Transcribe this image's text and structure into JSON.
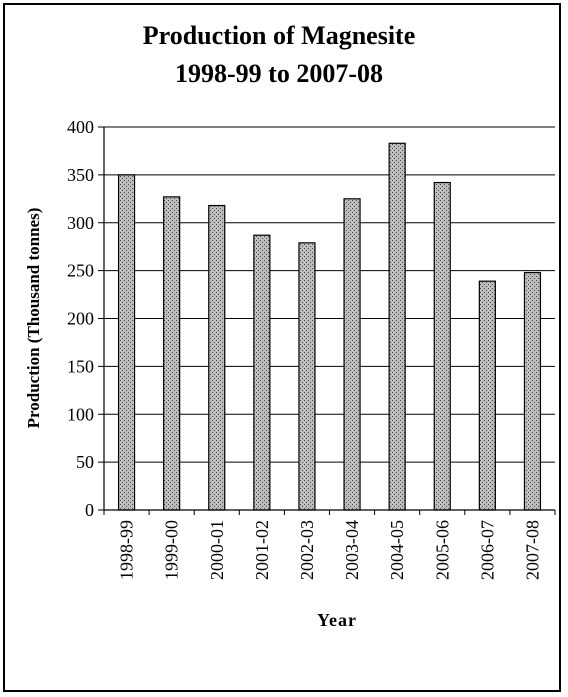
{
  "chart_data": {
    "type": "bar",
    "title": [
      "Production of Magnesite",
      "1998-99 to 2007-08"
    ],
    "xlabel": "Year",
    "ylabel": "Production (Thousand tonnes)",
    "categories": [
      "1998-99",
      "1999-00",
      "2000-01",
      "2001-02",
      "2002-03",
      "2003-04",
      "2004-05",
      "2005-06",
      "2006-07",
      "2007-08"
    ],
    "values": [
      350,
      327,
      318,
      287,
      279,
      325,
      383,
      342,
      239,
      248
    ],
    "ylim": [
      0,
      400
    ],
    "yticks": [
      "0",
      "50",
      "100",
      "150",
      "200",
      "250",
      "300",
      "350",
      "400"
    ],
    "grid": true,
    "legend": "none",
    "colors": {
      "bar_fill": "#bdbdbd",
      "bar_pattern": "#4a4a4a",
      "grid": "#000000",
      "background": "#ffffff"
    }
  }
}
